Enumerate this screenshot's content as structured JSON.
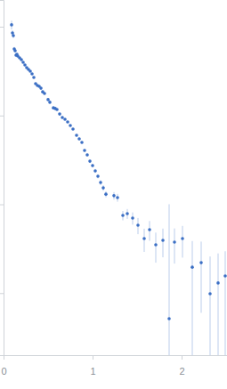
{
  "chart_data": {
    "type": "scatter",
    "x": [
      0.09,
      0.1,
      0.11,
      0.12,
      0.13,
      0.14,
      0.15,
      0.16,
      0.18,
      0.2,
      0.22,
      0.24,
      0.26,
      0.28,
      0.3,
      0.32,
      0.34,
      0.36,
      0.38,
      0.4,
      0.42,
      0.44,
      0.46,
      0.5,
      0.52,
      0.56,
      0.58,
      0.6,
      0.63,
      0.66,
      0.69,
      0.72,
      0.75,
      0.78,
      0.82,
      0.85,
      0.88,
      0.91,
      0.94,
      0.97,
      1.0,
      1.03,
      1.06,
      1.09,
      1.12,
      1.15,
      1.24,
      1.28,
      1.34,
      1.39,
      1.45,
      1.51,
      1.58,
      1.64,
      1.71,
      1.79,
      1.86,
      1.92,
      2.01,
      2.12,
      2.22,
      2.32,
      2.41,
      2.49
    ],
    "values": [
      1.05,
      0.851,
      0.794,
      0.561,
      0.536,
      0.478,
      0.489,
      0.467,
      0.446,
      0.426,
      0.397,
      0.371,
      0.346,
      0.33,
      0.315,
      0.294,
      0.268,
      0.228,
      0.218,
      0.213,
      0.203,
      0.185,
      0.177,
      0.151,
      0.141,
      0.122,
      0.12,
      0.117,
      0.104,
      0.0949,
      0.0906,
      0.0846,
      0.0771,
      0.0703,
      0.0598,
      0.0546,
      0.0498,
      0.0404,
      0.036,
      0.0306,
      0.0273,
      0.0238,
      0.0207,
      0.0176,
      0.0153,
      0.013,
      0.0125,
      0.0119,
      0.0075,
      0.00785,
      0.007,
      0.00581,
      0.00411,
      0.00518,
      0.0035,
      0.00393,
      0.000515,
      0.00375,
      0.00411,
      0.00196,
      0.0022,
      0.000983,
      0.0013,
      0.00156
    ],
    "errors": [
      0.12,
      0.06,
      0.05,
      0.03,
      0.025,
      0.02,
      0.02,
      0.015,
      0.012,
      0.01,
      0.01,
      0.009,
      0.008,
      0.007,
      0.007,
      0.006,
      0.006,
      0.005,
      0.005,
      0.005,
      0.004,
      0.004,
      0.004,
      0.004,
      0.003,
      0.003,
      0.003,
      0.003,
      0.003,
      0.003,
      0.002,
      0.002,
      0.002,
      0.002,
      0.002,
      0.002,
      0.0015,
      0.0015,
      0.0015,
      0.0013,
      0.0012,
      0.0012,
      0.0011,
      0.0011,
      0.0011,
      0.001,
      0.0012,
      0.0012,
      0.0009,
      0.001,
      0.0011,
      0.0012,
      0.0012,
      0.0013,
      0.0013,
      0.0014,
      0.0095,
      0.0016,
      0.0016,
      0.0019,
      0.0016,
      0.0016,
      0.0015,
      0.0014
    ],
    "xlim": [
      0,
      2.51
    ],
    "ylim": [
      0.0002,
      2
    ],
    "xticks": [
      0,
      1,
      2
    ],
    "yticks": [
      0.001,
      0.01,
      0.1,
      1
    ],
    "log": "y",
    "tick_labels": "x",
    "color": "#3b6fc4",
    "marker": "circle"
  }
}
